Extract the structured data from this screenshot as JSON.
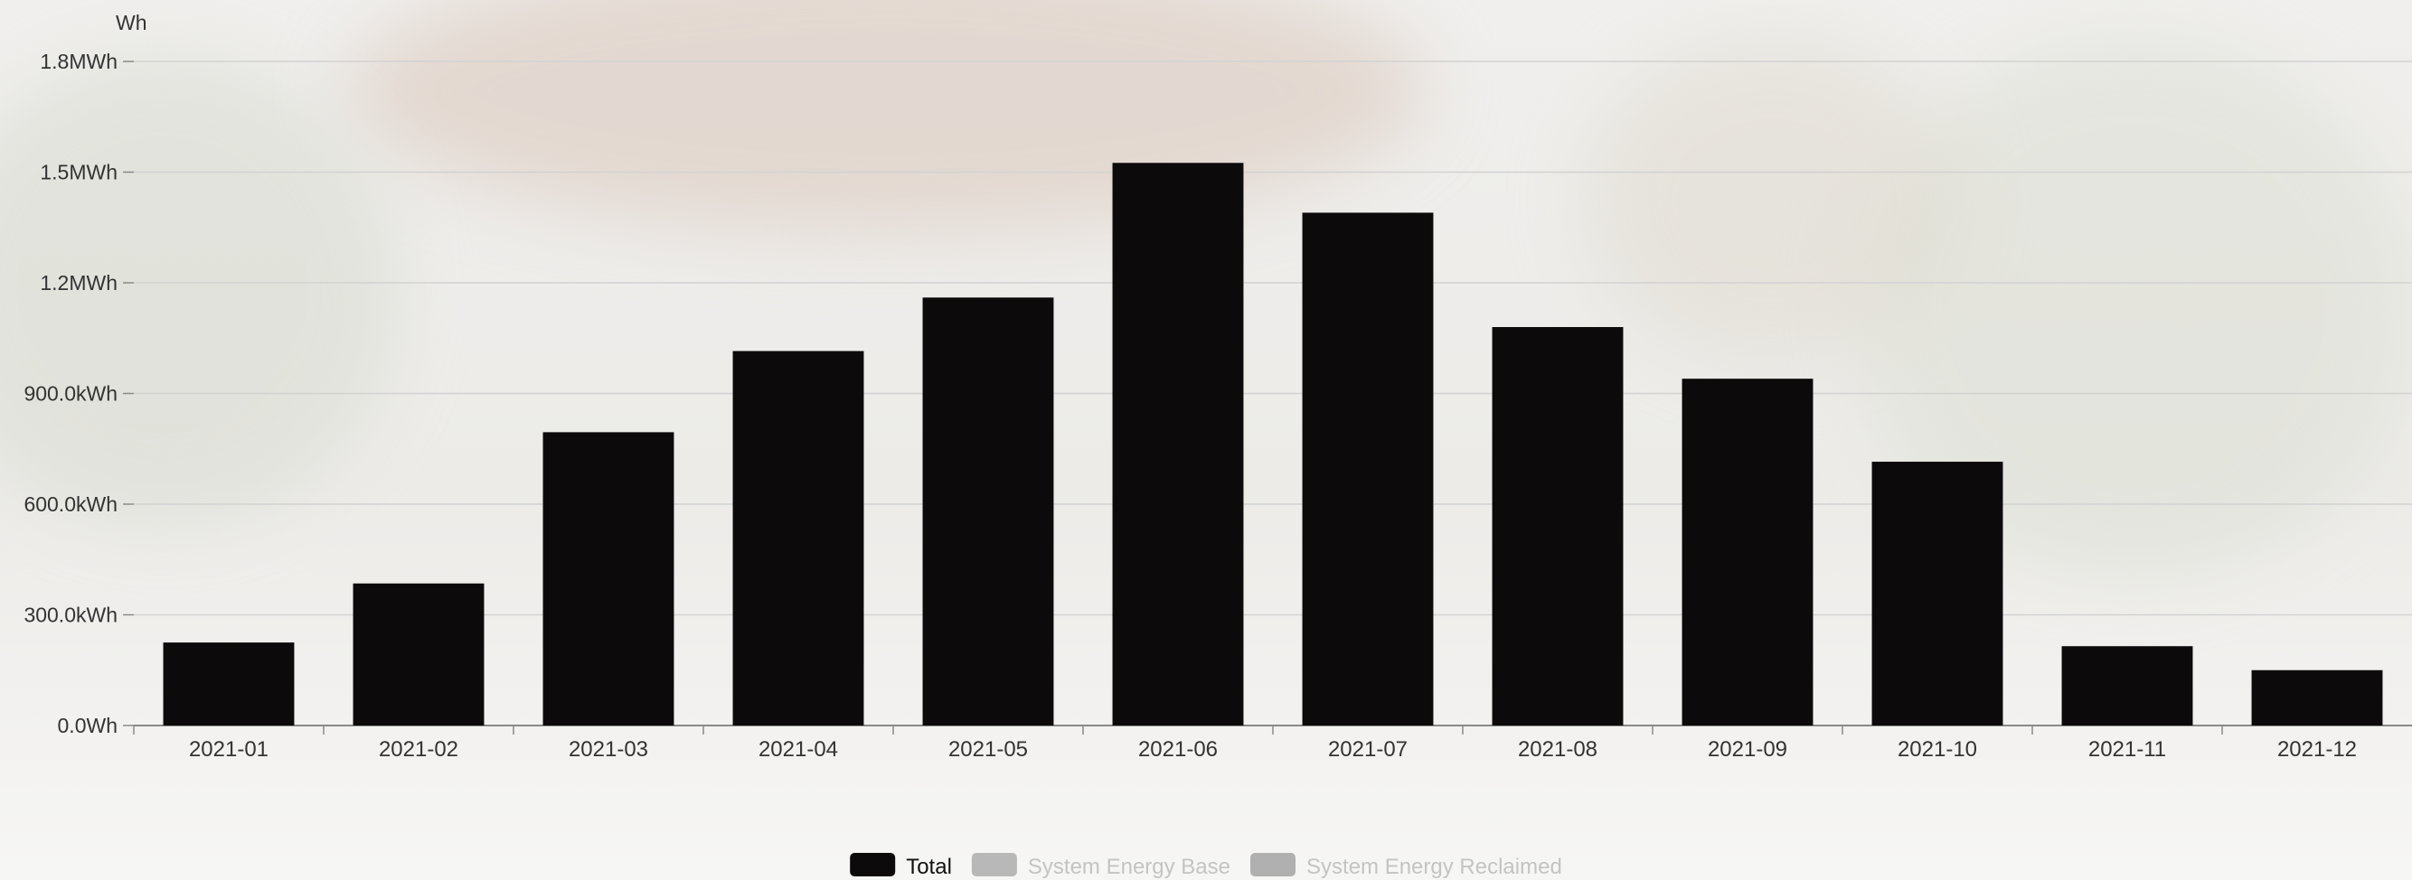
{
  "chart_data": {
    "type": "bar",
    "title": "",
    "ylabel": "Wh",
    "xlabel": "",
    "categories": [
      "2021-01",
      "2021-02",
      "2021-03",
      "2021-04",
      "2021-05",
      "2021-06",
      "2021-07",
      "2021-08",
      "2021-09",
      "2021-10",
      "2021-11",
      "2021-12"
    ],
    "series": [
      {
        "name": "Total",
        "values": [
          225000,
          385000,
          795000,
          1015000,
          1160000,
          1525000,
          1390000,
          1080000,
          940000,
          715000,
          215000,
          150000
        ],
        "color": "#0c0a0a"
      }
    ],
    "ylim": [
      0,
      1800000
    ],
    "yticks": [
      0,
      300000,
      600000,
      900000,
      1200000,
      1500000,
      1800000
    ],
    "ytick_labels": [
      "0.0Wh",
      "300.0kWh",
      "600.0kWh",
      "900.0kWh",
      "1.2MWh",
      "1.5MWh",
      "1.8MWh"
    ],
    "grid": true,
    "legend_position": "bottom-center",
    "legend": [
      {
        "label": "Total",
        "color": "#0c0a0a",
        "active": true
      },
      {
        "label": "System Energy Base",
        "color": "#b8b8b8",
        "active": false
      },
      {
        "label": "System Energy Reclaimed",
        "color": "#b0b0b0",
        "active": false
      }
    ]
  }
}
